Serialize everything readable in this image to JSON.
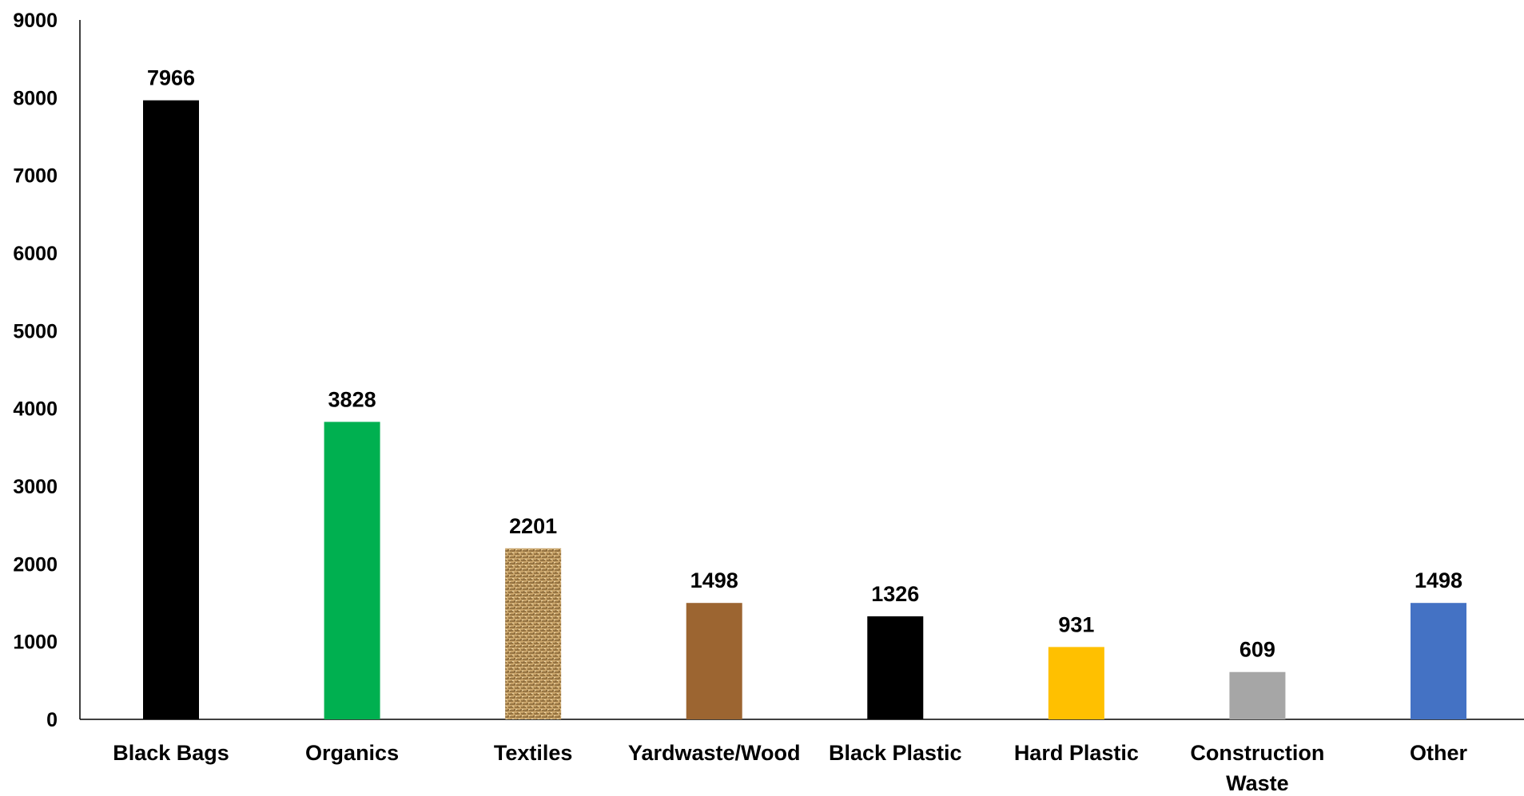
{
  "chart_data": {
    "type": "bar",
    "title": "",
    "xlabel": "",
    "ylabel": "",
    "categories": [
      [
        "Black Bags"
      ],
      [
        "Organics"
      ],
      [
        "Textiles"
      ],
      [
        "Yardwaste/Wood"
      ],
      [
        "Black Plastic"
      ],
      [
        "Hard Plastic"
      ],
      [
        "Construction",
        "Waste"
      ],
      [
        "Other"
      ]
    ],
    "values": [
      7966,
      3828,
      2201,
      1498,
      1326,
      931,
      609,
      1498
    ],
    "data_labels": [
      "7966",
      "3828",
      "2201",
      "1498",
      "1326",
      "931",
      "609",
      "1498"
    ],
    "bar_colors": [
      "#000000",
      "#00B050",
      "textile-pattern",
      "#9C6531",
      "#000000",
      "#FFC000",
      "#A6A6A6",
      "#4472C4"
    ],
    "ylim": [
      0,
      9000
    ],
    "yticks": [
      "0",
      "1000",
      "2000",
      "3000",
      "4000",
      "5000",
      "6000",
      "7000",
      "8000",
      "9000"
    ],
    "grid": false,
    "legend": "none"
  }
}
